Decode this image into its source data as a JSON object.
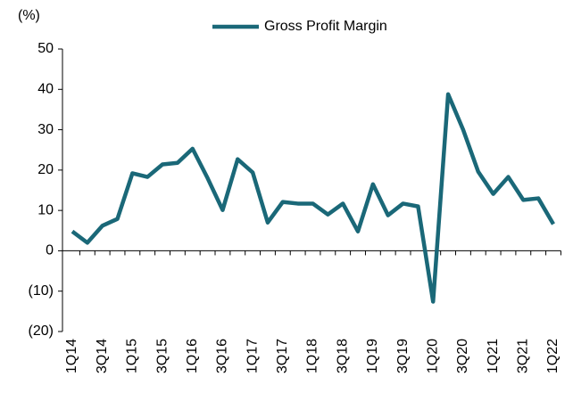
{
  "chart_data": {
    "type": "line",
    "y_unit_label": "(%)",
    "categories": [
      "1Q14",
      null,
      "3Q14",
      null,
      "1Q15",
      null,
      "3Q15",
      null,
      "1Q16",
      null,
      "3Q16",
      null,
      "1Q17",
      null,
      "3Q17",
      null,
      "1Q18",
      null,
      "3Q18",
      null,
      "1Q19",
      null,
      "3Q19",
      null,
      "1Q20",
      null,
      "3Q20",
      null,
      "1Q21",
      null,
      "3Q21",
      null,
      "1Q22"
    ],
    "series": [
      {
        "name": "Gross Profit Margin",
        "color": "#1a6878",
        "values": [
          4.8,
          2,
          6.2,
          7.9,
          19.2,
          18.3,
          21.4,
          21.8,
          25.3,
          18,
          10.1,
          22.7,
          19.4,
          7,
          12.1,
          11.7,
          11.7,
          9,
          11.7,
          4.8,
          16.5,
          8.8,
          11.7,
          11,
          -12.6,
          38.8,
          30,
          19.6,
          14.1,
          18.3,
          12.6,
          13,
          6.6
        ]
      }
    ],
    "ylim": [
      -20,
      50
    ],
    "yticks": [
      {
        "value": -20,
        "label": "(20)"
      },
      {
        "value": -10,
        "label": "(10)"
      },
      0,
      10,
      20,
      30,
      40,
      50
    ],
    "grid": false,
    "legend": "top"
  }
}
